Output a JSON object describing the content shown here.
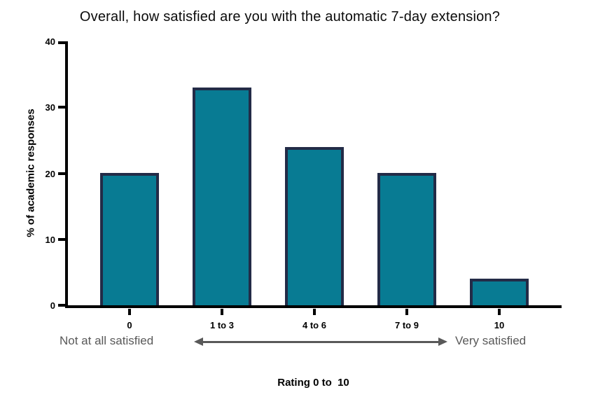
{
  "title": "Overall, how satisfied are you with the automatic 7-day extension?",
  "chart_data": {
    "type": "bar",
    "categories": [
      "0",
      "1 to 3",
      "4 to 6",
      "7 to 9",
      "10"
    ],
    "values": [
      20,
      33,
      24,
      20,
      4
    ],
    "title": "Overall, how satisfied are you with the automatic 7-day extension?",
    "xlabel": "Rating 0 to  10",
    "ylabel": "% of academic responses",
    "ylim": [
      0,
      40
    ],
    "yticks": [
      0,
      10,
      20,
      30,
      40
    ],
    "grid": false,
    "legend": false,
    "bar_fill_color": "#087b93",
    "bar_border_color": "#232b47",
    "axis_color": "#000000"
  },
  "annotations": {
    "left_label": "Not at all satisfied",
    "right_label": "Very satisfied",
    "text_color": "#595959",
    "arrow_color": "#595959"
  }
}
